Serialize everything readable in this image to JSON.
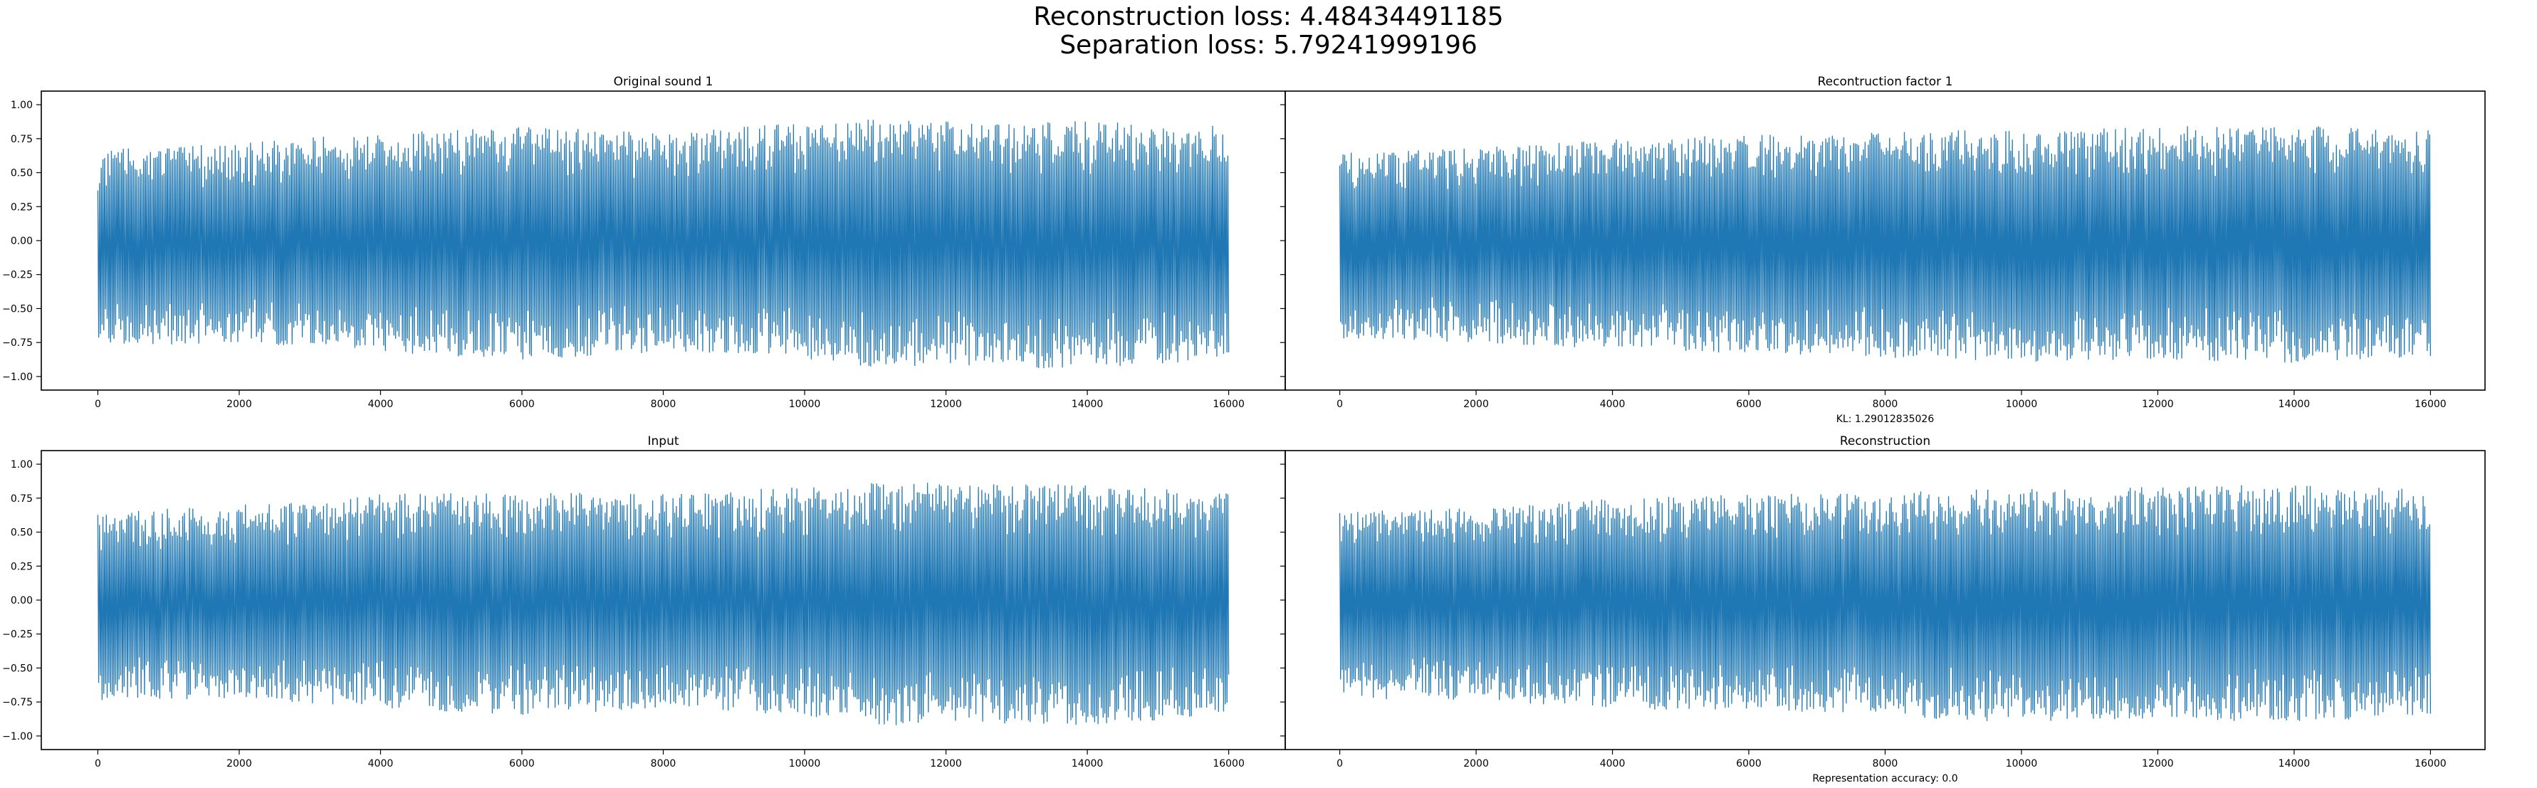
{
  "figure": {
    "suptitle_line1": "Reconstruction loss: 4.48434491185",
    "suptitle_line2": "Separation loss: 5.79241999196"
  },
  "chart_data": [
    {
      "type": "line",
      "title": "Original sound 1",
      "xlabel": "",
      "xlim": [
        -800,
        16800
      ],
      "ylim": [
        -1.1,
        1.1
      ],
      "xticks": [
        0,
        2000,
        4000,
        6000,
        8000,
        10000,
        12000,
        14000,
        16000
      ],
      "xtick_labels": [
        "0",
        "2000",
        "4000",
        "6000",
        "8000",
        "10000",
        "12000",
        "14000",
        "16000"
      ],
      "yticks": [
        1.0,
        0.75,
        0.5,
        0.25,
        0.0,
        -0.25,
        -0.5,
        -0.75,
        -1.0
      ],
      "ytick_labels": [
        "1.00",
        "0.75",
        "0.50",
        "0.25",
        "0.00",
        "−0.25",
        "−0.50",
        "−0.75",
        "−1.00"
      ],
      "color": "#1f77b4",
      "series": [
        {
          "x": [
            0,
            2000,
            4000,
            6000,
            8000,
            10000,
            11200,
            12000,
            14000,
            16000
          ],
          "upper_envelope": [
            0.67,
            0.72,
            0.8,
            0.84,
            0.8,
            0.87,
            0.9,
            0.89,
            0.88,
            0.84
          ],
          "lower_envelope": [
            -0.78,
            -0.75,
            -0.82,
            -0.88,
            -0.82,
            -0.87,
            -0.96,
            -0.92,
            -0.95,
            -0.87
          ],
          "n_samples": 16000
        }
      ]
    },
    {
      "type": "line",
      "title": "Recontruction factor 1",
      "xlabel": "KL: 1.29012835026",
      "xlim": [
        -800,
        16800
      ],
      "ylim": [
        -1.1,
        1.1
      ],
      "xticks": [
        0,
        2000,
        4000,
        6000,
        8000,
        10000,
        12000,
        14000,
        16000
      ],
      "xtick_labels": [
        "0",
        "2000",
        "4000",
        "6000",
        "8000",
        "10000",
        "12000",
        "14000",
        "16000"
      ],
      "color": "#1f77b4",
      "series": [
        {
          "x": [
            0,
            2000,
            4000,
            6000,
            8000,
            10000,
            12000,
            14000,
            16000
          ],
          "upper_envelope": [
            0.65,
            0.68,
            0.75,
            0.78,
            0.8,
            0.82,
            0.84,
            0.85,
            0.82
          ],
          "lower_envelope": [
            -0.72,
            -0.75,
            -0.8,
            -0.83,
            -0.86,
            -0.9,
            -0.88,
            -0.9,
            -0.85
          ],
          "n_samples": 16000
        }
      ]
    },
    {
      "type": "line",
      "title": "Input",
      "xlabel": "",
      "xlim": [
        -800,
        16800
      ],
      "ylim": [
        -1.1,
        1.1
      ],
      "xticks": [
        0,
        2000,
        4000,
        6000,
        8000,
        10000,
        12000,
        14000,
        16000
      ],
      "xtick_labels": [
        "0",
        "2000",
        "4000",
        "6000",
        "8000",
        "10000",
        "12000",
        "14000",
        "16000"
      ],
      "yticks": [
        1.0,
        0.75,
        0.5,
        0.25,
        0.0,
        -0.25,
        -0.5,
        -0.75,
        -1.0
      ],
      "ytick_labels": [
        "1.00",
        "0.75",
        "0.50",
        "0.25",
        "0.00",
        "−0.25",
        "−0.50",
        "−0.75",
        "−1.00"
      ],
      "color": "#1f77b4",
      "series": [
        {
          "x": [
            0,
            2000,
            4000,
            6000,
            8000,
            10000,
            11200,
            12000,
            14000,
            16000
          ],
          "upper_envelope": [
            0.65,
            0.7,
            0.78,
            0.8,
            0.78,
            0.84,
            0.87,
            0.86,
            0.85,
            0.82
          ],
          "lower_envelope": [
            -0.75,
            -0.72,
            -0.8,
            -0.85,
            -0.8,
            -0.85,
            -0.93,
            -0.9,
            -0.92,
            -0.85
          ],
          "n_samples": 16000
        }
      ]
    },
    {
      "type": "line",
      "title": "Reconstruction",
      "xlabel": "Representation accuracy: 0.0",
      "xlim": [
        -800,
        16800
      ],
      "ylim": [
        -1.1,
        1.1
      ],
      "xticks": [
        0,
        2000,
        4000,
        6000,
        8000,
        10000,
        12000,
        14000,
        16000
      ],
      "xtick_labels": [
        "0",
        "2000",
        "4000",
        "6000",
        "8000",
        "10000",
        "12000",
        "14000",
        "16000"
      ],
      "color": "#1f77b4",
      "series": [
        {
          "x": [
            0,
            2000,
            4000,
            6000,
            8000,
            10000,
            12000,
            14000,
            16000
          ],
          "upper_envelope": [
            0.65,
            0.68,
            0.75,
            0.78,
            0.8,
            0.82,
            0.84,
            0.85,
            0.82
          ],
          "lower_envelope": [
            -0.72,
            -0.75,
            -0.8,
            -0.83,
            -0.86,
            -0.9,
            -0.88,
            -0.9,
            -0.85
          ],
          "n_samples": 16000
        }
      ]
    }
  ]
}
